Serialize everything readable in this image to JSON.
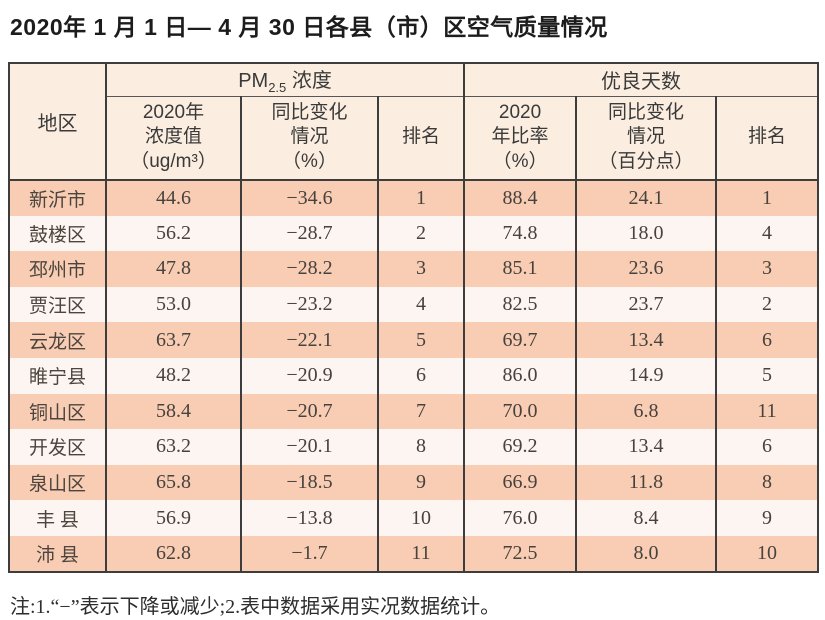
{
  "page": {
    "title": "2020年 1 月 1 日— 4 月 30 日各县（市）区空气质量情况",
    "note": "注:1.“−”表示下降或减少;2.表中数据采用实况数据统计。"
  },
  "table": {
    "header": {
      "region": "地区",
      "pm25_prefix": "PM",
      "pm25_sub": "2.5",
      "pm25_suffix": " 浓度",
      "good_days_group": "优良天数",
      "pm_value": "2020年\n浓度值\n（ug/m³）",
      "pm_change": "同比变化\n情况\n（%）",
      "pm_rank": "排名",
      "good_ratio": "2020\n年比率\n（%）",
      "good_change": "同比变化\n情况\n（百分点）",
      "good_rank": "排名"
    },
    "rows": [
      {
        "region": "新沂市",
        "pm_value": "44.6",
        "pm_change": "−34.6",
        "pm_rank": "1",
        "good_ratio": "88.4",
        "good_change": "24.1",
        "good_rank": "1"
      },
      {
        "region": "鼓楼区",
        "pm_value": "56.2",
        "pm_change": "−28.7",
        "pm_rank": "2",
        "good_ratio": "74.8",
        "good_change": "18.0",
        "good_rank": "4"
      },
      {
        "region": "邳州市",
        "pm_value": "47.8",
        "pm_change": "−28.2",
        "pm_rank": "3",
        "good_ratio": "85.1",
        "good_change": "23.6",
        "good_rank": "3"
      },
      {
        "region": "贾汪区",
        "pm_value": "53.0",
        "pm_change": "−23.2",
        "pm_rank": "4",
        "good_ratio": "82.5",
        "good_change": "23.7",
        "good_rank": "2"
      },
      {
        "region": "云龙区",
        "pm_value": "63.7",
        "pm_change": "−22.1",
        "pm_rank": "5",
        "good_ratio": "69.7",
        "good_change": "13.4",
        "good_rank": "6"
      },
      {
        "region": "睢宁县",
        "pm_value": "48.2",
        "pm_change": "−20.9",
        "pm_rank": "6",
        "good_ratio": "86.0",
        "good_change": "14.9",
        "good_rank": "5"
      },
      {
        "region": "铜山区",
        "pm_value": "58.4",
        "pm_change": "−20.7",
        "pm_rank": "7",
        "good_ratio": "70.0",
        "good_change": "6.8",
        "good_rank": "11"
      },
      {
        "region": "开发区",
        "pm_value": "63.2",
        "pm_change": "−20.1",
        "pm_rank": "8",
        "good_ratio": "69.2",
        "good_change": "13.4",
        "good_rank": "6"
      },
      {
        "region": "泉山区",
        "pm_value": "65.8",
        "pm_change": "−18.5",
        "pm_rank": "9",
        "good_ratio": "66.9",
        "good_change": "11.8",
        "good_rank": "8"
      },
      {
        "region": "丰 县",
        "pm_value": "56.9",
        "pm_change": "−13.8",
        "pm_rank": "10",
        "good_ratio": "76.0",
        "good_change": "8.4",
        "good_rank": "9"
      },
      {
        "region": "沛 县",
        "pm_value": "62.8",
        "pm_change": "−1.7",
        "pm_rank": "11",
        "good_ratio": "72.5",
        "good_change": "8.0",
        "good_rank": "10"
      }
    ]
  },
  "colors": {
    "row_salmon": "#f8cdb3",
    "row_light": "#fdf5f1",
    "header_bg": "#fbeee0",
    "border": "#3d3d3d"
  }
}
